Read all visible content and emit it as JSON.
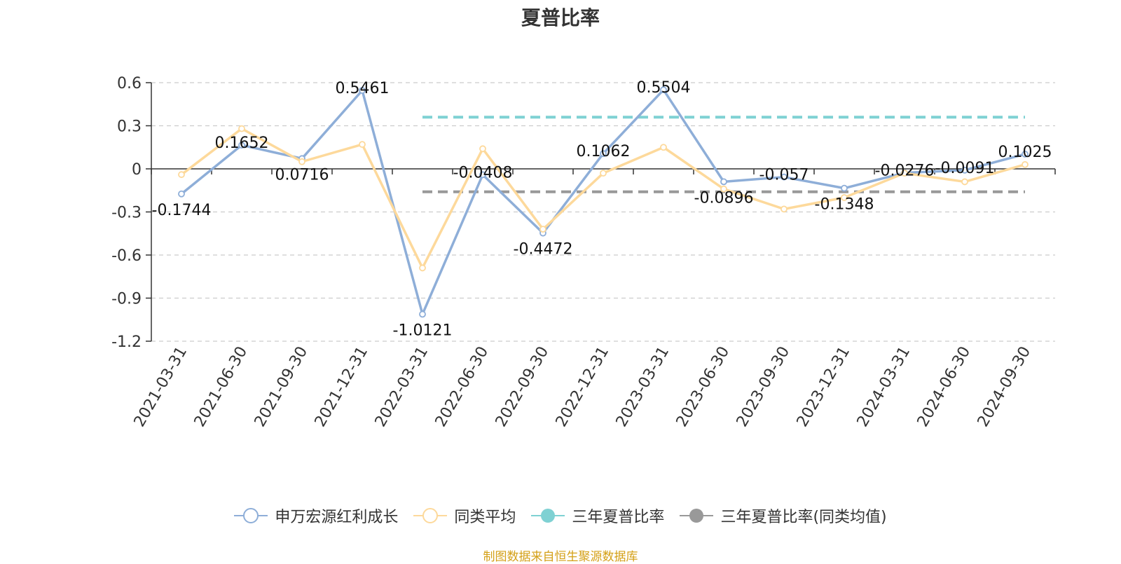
{
  "chart_data": {
    "type": "line",
    "title": "夏普比率",
    "categories": [
      "2021-03-31",
      "2021-06-30",
      "2021-09-30",
      "2021-12-31",
      "2022-03-31",
      "2022-06-30",
      "2022-09-30",
      "2022-12-31",
      "2023-03-31",
      "2023-06-30",
      "2023-09-30",
      "2023-12-31",
      "2024-03-31",
      "2024-06-30",
      "2024-09-30"
    ],
    "ylim": [
      -1.2,
      0.6
    ],
    "yticks": [
      "0.6",
      "0.3",
      "0",
      "-0.3",
      "-0.6",
      "-0.9",
      "-1.2"
    ],
    "grid": true,
    "legend_position": "bottom",
    "series": [
      {
        "name": "申万宏源红利成长",
        "color": "#8eaed8",
        "values": [
          -0.1744,
          0.1652,
          0.0716,
          0.5461,
          -1.0121,
          -0.0408,
          -0.4472,
          0.1062,
          0.5504,
          -0.0896,
          -0.057,
          -0.1348,
          -0.0276,
          -0.0091,
          0.1025
        ],
        "labels": [
          "-0.1744",
          "0.1652",
          "0.0716",
          "0.5461",
          "-1.0121",
          "-0.0408",
          "-0.4472",
          "0.1062",
          "0.5504",
          "-0.0896",
          "-0.057",
          "-0.1348",
          "-0.0276",
          "-0.0091",
          "0.1025"
        ]
      },
      {
        "name": "同类平均",
        "color": "#fdd99b",
        "values": [
          -0.04,
          0.28,
          0.05,
          0.17,
          -0.69,
          0.14,
          -0.42,
          -0.03,
          0.15,
          -0.14,
          -0.28,
          -0.2,
          -0.03,
          -0.09,
          0.03
        ]
      },
      {
        "name": "三年夏普比率",
        "color": "#7fd1d3",
        "style": "dashed-reference",
        "value": 0.36,
        "start_category": "2022-03-31",
        "end_category": "2024-09-30"
      },
      {
        "name": "三年夏普比率(同类均值)",
        "color": "#999999",
        "style": "dashed-reference",
        "value": -0.16,
        "start_category": "2022-03-31",
        "end_category": "2024-09-30"
      }
    ]
  },
  "legend": {
    "items": [
      {
        "label": "申万宏源红利成长",
        "color": "#8eaed8",
        "icon": "hollow-circle-line"
      },
      {
        "label": "同类平均",
        "color": "#fdd99b",
        "icon": "hollow-circle-line"
      },
      {
        "label": "三年夏普比率",
        "color": "#7fd1d3",
        "icon": "filled-circle-line"
      },
      {
        "label": "三年夏普比率(同类均值)",
        "color": "#999999",
        "icon": "filled-circle-line"
      }
    ]
  },
  "source_note": "制图数据来自恒生聚源数据库"
}
